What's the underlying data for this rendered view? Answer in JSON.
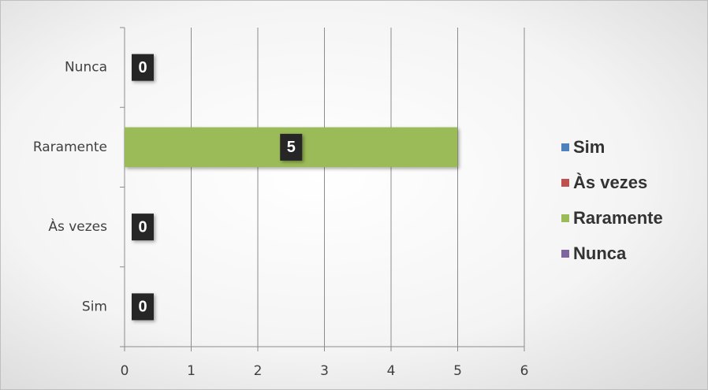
{
  "chart_data": {
    "type": "bar",
    "orientation": "horizontal",
    "categories": [
      "Sim",
      "Às vezes",
      "Raramente",
      "Nunca"
    ],
    "series": [
      {
        "name": "Sim",
        "color": "#4f81bd",
        "values": [
          0,
          null,
          null,
          null
        ]
      },
      {
        "name": "Às vezes",
        "color": "#c0504d",
        "values": [
          null,
          0,
          null,
          null
        ]
      },
      {
        "name": "Raramente",
        "color": "#9bbb59",
        "values": [
          null,
          null,
          5,
          null
        ]
      },
      {
        "name": "Nunca",
        "color": "#8064a2",
        "values": [
          null,
          null,
          null,
          0
        ]
      }
    ],
    "xlim": [
      0,
      6
    ],
    "xticks": [
      0,
      1,
      2,
      3,
      4,
      5,
      6
    ],
    "grid": true,
    "legend": "right"
  }
}
